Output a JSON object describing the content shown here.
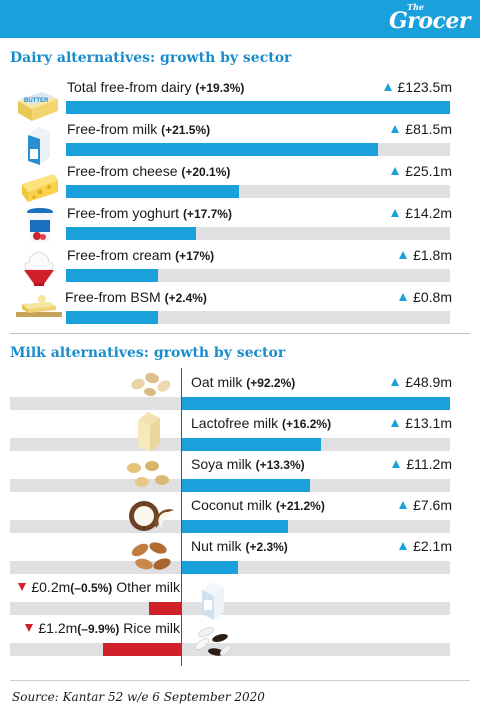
{
  "brand": {
    "small": "The",
    "name": "Grocer"
  },
  "dairy": {
    "title": "Dairy alternatives: growth by sector",
    "rows": [
      {
        "name": "Total free-from dairy",
        "growth": "(+19.3%)",
        "value_text": "£123.5m",
        "value": 123.5
      },
      {
        "name": "Free-from milk",
        "growth": "(+21.5%)",
        "value_text": "£81.5m",
        "value": 81.5
      },
      {
        "name": "Free-from cheese",
        "growth": "(+20.1%)",
        "value_text": "£25.1m",
        "value": 25.1
      },
      {
        "name": "Free-from yoghurt",
        "growth": "(+17.7%)",
        "value_text": "£14.2m",
        "value": 14.2
      },
      {
        "name": "Free-from cream",
        "growth": "(+17%)",
        "value_text": "£1.8m",
        "value": 1.8
      },
      {
        "name": "Free-from BSM",
        "growth": "(+2.4%)",
        "value_text": "£0.8m",
        "value": 0.8
      }
    ]
  },
  "milk": {
    "title": "Milk alternatives: growth by sector",
    "rows": [
      {
        "name": "Oat milk",
        "growth": "(+92.2%)",
        "value_text": "£48.9m",
        "value": 48.9,
        "direction": "up"
      },
      {
        "name": "Lactofree milk",
        "growth": "(+16.2%)",
        "value_text": "£13.1m",
        "value": 13.1,
        "direction": "up"
      },
      {
        "name": "Soya milk",
        "growth": "(+13.3%)",
        "value_text": "£11.2m",
        "value": 11.2,
        "direction": "up"
      },
      {
        "name": "Coconut milk",
        "growth": "(+21.2%)",
        "value_text": "£7.6m",
        "value": 7.6,
        "direction": "up"
      },
      {
        "name": "Nut milk",
        "growth": "(+2.3%)",
        "value_text": "£2.1m",
        "value": 2.1,
        "direction": "up"
      },
      {
        "name": "Other milk",
        "growth": "(–0.5%)",
        "value_text": "£0.2m",
        "value": -0.2,
        "direction": "down"
      },
      {
        "name": "Rice milk",
        "growth": "(–9.9%)",
        "value_text": "£1.2m",
        "value": -1.2,
        "direction": "down"
      }
    ]
  },
  "source": "Source: Kantar 52 w/e 6 September 2020",
  "colors": {
    "accent": "#1aa0da",
    "negative": "#d0202a",
    "track": "#e0e0e3",
    "title": "#1a8ccc"
  },
  "icons": [
    "butter-icon",
    "milk-carton-icon",
    "cheese-icon",
    "yoghurt-icon",
    "cream-icon",
    "spread-icon",
    "oats-icon",
    "milk-carton-icon",
    "soya-beans-icon",
    "coconut-icon",
    "almonds-icon",
    "milk-carton-icon",
    "rice-grains-icon"
  ],
  "chart_data": [
    {
      "type": "bar",
      "title": "Dairy alternatives: growth by sector",
      "categories": [
        "Total free-from dairy",
        "Free-from milk",
        "Free-from cheese",
        "Free-from yoghurt",
        "Free-from cream",
        "Free-from BSM"
      ],
      "series": [
        {
          "values": [
            19.3,
            21.5,
            20.1,
            17.7,
            17.0,
            2.4
          ]
        }
      ],
      "value_labels": [
        "£123.5m",
        "£81.5m",
        "£25.1m",
        "£14.2m",
        "£1.8m",
        "£0.8m"
      ],
      "orientation": "horizontal"
    },
    {
      "type": "bar",
      "title": "Milk alternatives: growth by sector",
      "categories": [
        "Oat milk",
        "Lactofree milk",
        "Soya milk",
        "Coconut milk",
        "Nut milk",
        "Other milk",
        "Rice milk"
      ],
      "series": [
        {
          "values": [
            48.9,
            13.1,
            11.2,
            7.6,
            2.1,
            -0.2,
            -1.2
          ]
        }
      ],
      "growth_labels": [
        "+92.2%",
        "+16.2%",
        "+13.3%",
        "+21.2%",
        "+2.3%",
        "–0.5%",
        "–9.9%"
      ],
      "orientation": "horizontal"
    }
  ]
}
